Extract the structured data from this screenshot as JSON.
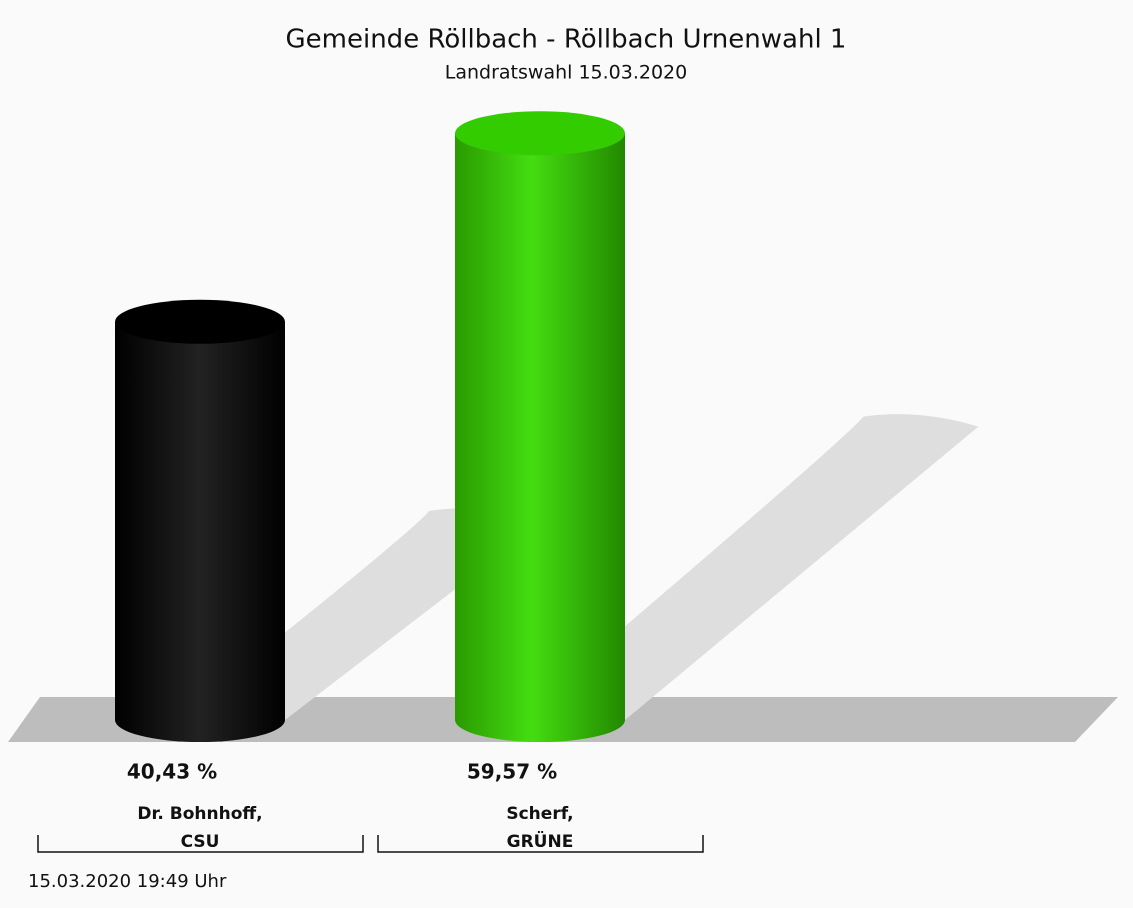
{
  "chart_data": {
    "type": "bar",
    "title": "Gemeinde Röllbach - Röllbach Urnenwahl 1",
    "subtitle": "Landratswahl 15.03.2020",
    "categories": [
      "Dr. Bohnhoff,\nCSU",
      "Scherf,\nGRÜNE"
    ],
    "values": [
      40.43,
      59.57
    ],
    "value_labels": [
      "40,43 %",
      "59,57 %"
    ],
    "colors": [
      "#000000",
      "#33cc00"
    ],
    "footnote": "15.03.2020 19:49 Uhr"
  }
}
